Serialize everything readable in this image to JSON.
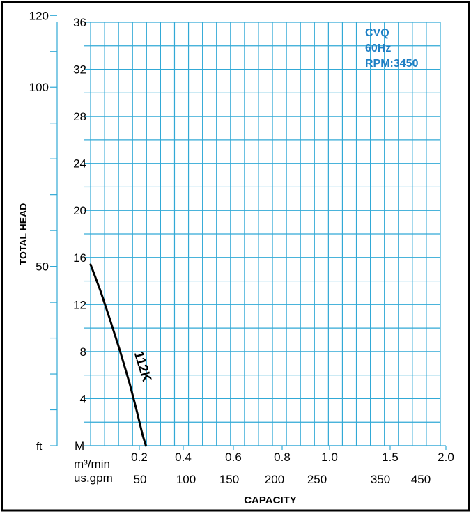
{
  "colors": {
    "grid": "#31a9d6",
    "curve": "#000000",
    "frame": "#000000",
    "info_text": "#1f7fc4",
    "label": "#000000"
  },
  "chart_data": {
    "type": "line",
    "title": "",
    "info_lines": [
      "CVQ",
      "60Hz",
      "RPM:3450"
    ],
    "xlabel": "CAPACITY",
    "ylabel": "TOTAL HEAD",
    "grid": true,
    "left_axis_unit": "ft",
    "right_axis_unit": "M",
    "bottom_axis1_unit": "m³/min",
    "bottom_axis2_unit": "us.gpm",
    "y_m_ticks": [
      "36",
      "32",
      "28",
      "24",
      "20",
      "16",
      "12",
      "8",
      "4"
    ],
    "y_m_range": [
      0,
      36
    ],
    "y_ft_ticks": [
      "120",
      "100",
      "50"
    ],
    "y_ft_tick_values": [
      120,
      100,
      50
    ],
    "x_m3_ticks": [
      "0.2",
      "0.4",
      "0.6",
      "0.8",
      "1.0",
      "1.5",
      "2.0"
    ],
    "x_m3_tick_values": [
      0.2,
      0.4,
      0.6,
      0.8,
      1.0,
      1.5,
      2.0
    ],
    "x_gpm_ticks": [
      "50",
      "100",
      "150",
      "200",
      "250",
      "350",
      "450"
    ],
    "x_gpm_tick_values": [
      50,
      100,
      150,
      200,
      250,
      350,
      450
    ],
    "series": [
      {
        "name": "112K",
        "x": [
          0.0,
          0.04,
          0.08,
          0.12,
          0.16,
          0.19,
          0.215,
          0.23
        ],
        "y": [
          15.4,
          13.2,
          10.7,
          8.1,
          5.3,
          2.9,
          0.9,
          0
        ]
      }
    ]
  }
}
